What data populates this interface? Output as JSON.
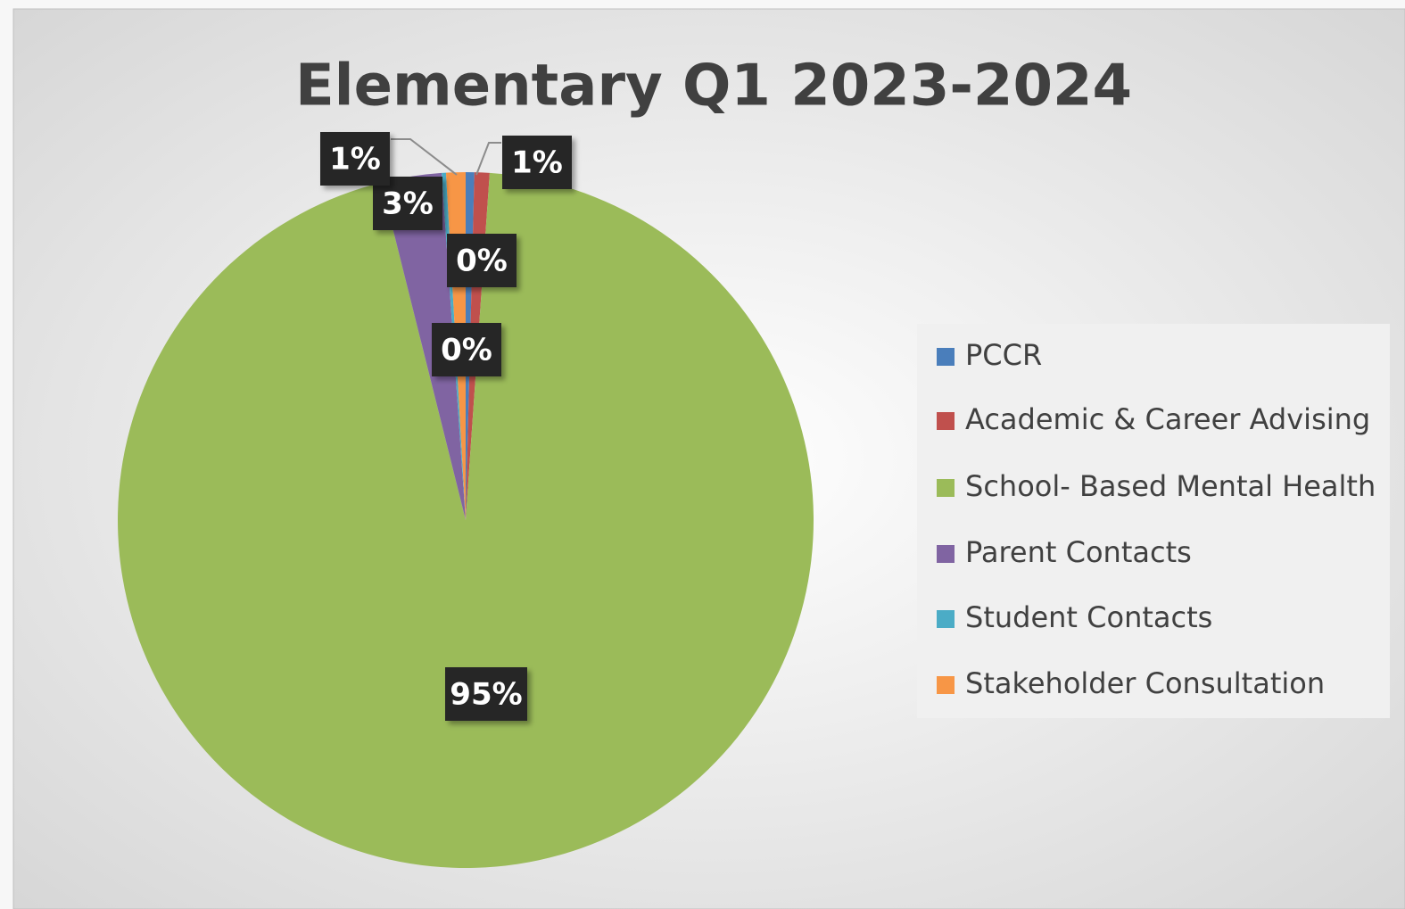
{
  "chart_data": {
    "type": "pie",
    "title": "Elementary Q1 2023-2024",
    "categories": [
      "PCCR",
      "Academic & Career Advising",
      "School- Based Mental Health",
      "Parent Contacts",
      "Student Contacts",
      "Stakeholder Consultation"
    ],
    "values": [
      0.4,
      0.7,
      95.0,
      2.8,
      0.2,
      0.9
    ],
    "value_labels": [
      "0%",
      "1%",
      "95%",
      "3%",
      "0%",
      "1%"
    ],
    "colors": [
      "#4a7ebb",
      "#c0504d",
      "#9bbb59",
      "#8064a2",
      "#4bacc6",
      "#f79646"
    ],
    "legend": "right"
  }
}
